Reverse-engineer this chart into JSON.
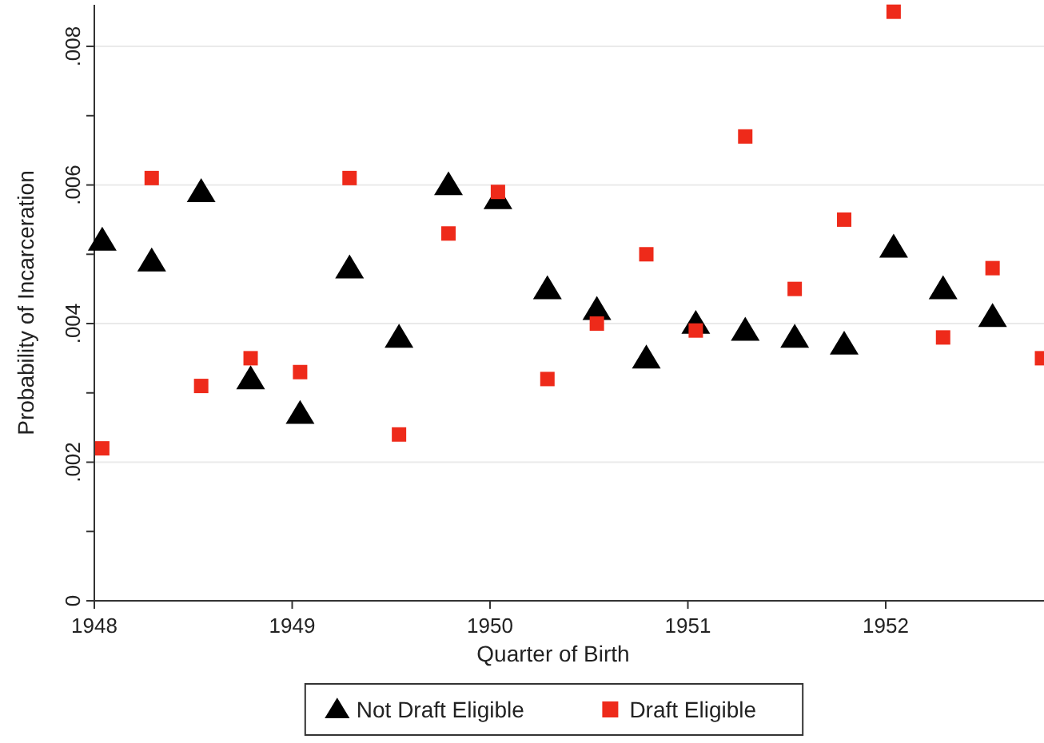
{
  "chart_data": {
    "type": "scatter",
    "xlabel": "Quarter of Birth",
    "ylabel": "Probability of Incarceration",
    "xlim": [
      1948,
      1952.8
    ],
    "xticks": [
      1948,
      1949,
      1950,
      1951,
      1952
    ],
    "ylim": [
      0,
      0.0086
    ],
    "yticks": [
      {
        "value": 0,
        "label": "0"
      },
      {
        "value": 0.001,
        "label": null
      },
      {
        "value": 0.002,
        "label": ".002"
      },
      {
        "value": 0.003,
        "label": null
      },
      {
        "value": 0.004,
        "label": ".004"
      },
      {
        "value": 0.005,
        "label": null
      },
      {
        "value": 0.006,
        "label": ".006"
      },
      {
        "value": 0.007,
        "label": null
      },
      {
        "value": 0.008,
        "label": ".008"
      }
    ],
    "grid": "y",
    "legend": "bottom",
    "series": [
      {
        "name": "Not Draft Eligible",
        "color": "#000000",
        "marker": "triangle",
        "x": [
          1948.04,
          1948.29,
          1948.54,
          1948.79,
          1949.04,
          1949.29,
          1949.54,
          1949.79,
          1950.04,
          1950.29,
          1950.54,
          1950.79,
          1951.04,
          1951.29,
          1951.54,
          1951.79,
          1952.04,
          1952.29,
          1952.54
        ],
        "values": [
          0.0052,
          0.0049,
          0.0059,
          0.0032,
          0.0027,
          0.0048,
          0.0038,
          0.006,
          0.0058,
          0.0045,
          0.0042,
          0.0035,
          0.004,
          0.0039,
          0.0038,
          0.0037,
          0.0051,
          0.0045,
          0.0041
        ]
      },
      {
        "name": "Draft Eligible",
        "color": "#ee2a1a",
        "marker": "square",
        "x": [
          1948.04,
          1948.29,
          1948.54,
          1948.79,
          1949.04,
          1949.29,
          1949.54,
          1949.79,
          1950.04,
          1950.29,
          1950.54,
          1950.79,
          1951.04,
          1951.29,
          1951.54,
          1951.79,
          1952.04,
          1952.29,
          1952.54,
          1952.79
        ],
        "values": [
          0.0022,
          0.0061,
          0.0031,
          0.0035,
          0.0033,
          0.0061,
          0.0024,
          0.0053,
          0.0059,
          0.0032,
          0.004,
          0.005,
          0.0039,
          0.0067,
          0.0045,
          0.0055,
          0.0085,
          0.0038,
          0.0048,
          0.0035
        ]
      }
    ]
  }
}
